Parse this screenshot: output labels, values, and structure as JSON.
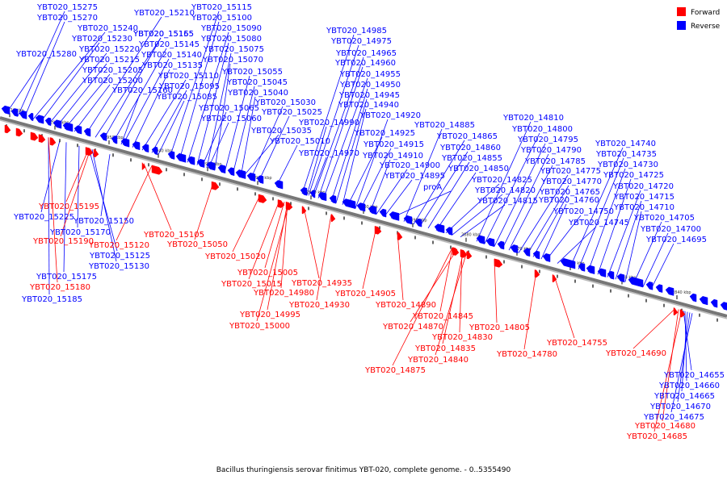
{
  "caption": "Bacillus thuringiensis serovar finitimus YBT-020, complete genome. - 0..5355490",
  "colors": {
    "forward": "#ff0000",
    "reverse": "#0000ff",
    "backbone": "#777777"
  },
  "legend": [
    {
      "label": "Forward",
      "color": "#ff0000"
    },
    {
      "label": "Reverse",
      "color": "#0000ff"
    }
  ],
  "ticks": [
    "2970 kbp",
    "2960 kbp",
    "2950 kbp",
    "2940 kbp",
    "2930 kbp",
    "2920 kbp",
    "2910 kbp",
    "2900 kbp",
    "2890 kbp",
    "2880 kbp",
    "2870 kbp",
    "2860 kbp",
    "2850 kbp",
    "2840 kbp"
  ],
  "reverse_labels": [
    "YBT020_15275",
    "YBT020_15270",
    "YBT020_15240",
    "YBT020_15230",
    "YBT020_15280",
    "YBT020_15220",
    "YBT020_15215",
    "YBT020_15205",
    "YBT020_15200",
    "YBT020_15210",
    "YBT020_15165",
    "YBT020_15155",
    "YBT020_15145",
    "YBT020_15140",
    "YBT020_15135",
    "YBT020_15110",
    "YBT020_15160",
    "YBT020_15095",
    "YBT020_15085",
    "YBT020_15115",
    "YBT020_15100",
    "YBT020_15090",
    "YBT020_15080",
    "YBT020_15075",
    "YBT020_15070",
    "YBT020_15055",
    "YBT020_15045",
    "YBT020_15040",
    "YBT020_15065",
    "YBT020_15060",
    "YBT020_15030",
    "YBT020_15025",
    "YBT020_15035",
    "YBT020_15010",
    "YBT020_14985",
    "YBT020_14975",
    "YBT020_14965",
    "YBT020_14960",
    "YBT020_14955",
    "YBT020_14950",
    "YBT020_14945",
    "YBT020_14940",
    "YBT020_14920",
    "YBT020_14990",
    "YBT020_14925",
    "YBT020_14970",
    "YBT020_14915",
    "YBT020_14910",
    "YBT020_14900",
    "YBT020_14895",
    "proA",
    "YBT020_14885",
    "YBT020_14865",
    "YBT020_14860",
    "YBT020_14855",
    "YBT020_14850",
    "YBT020_14825",
    "YBT020_14820",
    "YBT020_14815",
    "YBT020_14810",
    "YBT020_14800",
    "YBT020_14795",
    "YBT020_14790",
    "YBT020_14785",
    "YBT020_14775",
    "YBT020_14770",
    "YBT020_14765",
    "YBT020_14760",
    "YBT020_14750",
    "YBT020_14745",
    "YBT020_14740",
    "YBT020_14735",
    "YBT020_14730",
    "YBT020_14725",
    "YBT020_14720",
    "YBT020_14715",
    "YBT020_14710",
    "YBT020_14705",
    "YBT020_14700",
    "YBT020_14695",
    "YBT020_15225",
    "YBT020_15170",
    "YBT020_15150",
    "YBT020_15125",
    "YBT020_15130",
    "YBT020_15175",
    "YBT020_15185",
    "YBT020_14655",
    "YBT020_14660",
    "YBT020_14665",
    "YBT020_14670",
    "YBT020_14675"
  ],
  "forward_labels": [
    "YBT020_15195",
    "YBT020_15190",
    "YBT020_15120",
    "YBT020_15105",
    "YBT020_15050",
    "YBT020_15020",
    "YBT020_15015",
    "YBT020_15005",
    "YBT020_14980",
    "YBT020_14995",
    "YBT020_15000",
    "YBT020_14935",
    "YBT020_14930",
    "YBT020_14905",
    "YBT020_14890",
    "YBT020_15180",
    "YBT020_14845",
    "YBT020_14870",
    "YBT020_14830",
    "YBT020_14835",
    "YBT020_14840",
    "YBT020_14875",
    "YBT020_14805",
    "YBT020_14780",
    "YBT020_14755",
    "YBT020_14690",
    "YBT020_14680",
    "YBT020_14685"
  ]
}
